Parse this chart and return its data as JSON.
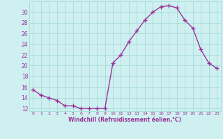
{
  "x": [
    0,
    1,
    2,
    3,
    4,
    5,
    6,
    7,
    8,
    9,
    10,
    11,
    12,
    13,
    14,
    15,
    16,
    17,
    18,
    19,
    20,
    21,
    22,
    23
  ],
  "y": [
    15.5,
    14.5,
    14.0,
    13.5,
    12.5,
    12.5,
    12.0,
    12.0,
    12.0,
    12.0,
    20.5,
    22.0,
    24.5,
    26.5,
    28.5,
    30.0,
    31.0,
    31.2,
    30.8,
    28.5,
    27.0,
    23.0,
    20.5,
    19.5
  ],
  "line_color": "#993399",
  "marker": "+",
  "bg_color": "#cff0f0",
  "grid_color": "#aadddd",
  "xlabel": "Windchill (Refroidissement éolien,°C)",
  "xlabel_color": "#993399",
  "tick_color": "#993399",
  "ylim": [
    11.5,
    32
  ],
  "yticks": [
    12,
    14,
    16,
    18,
    20,
    22,
    24,
    26,
    28,
    30
  ],
  "xticks": [
    0,
    1,
    2,
    3,
    4,
    5,
    6,
    7,
    8,
    9,
    10,
    11,
    12,
    13,
    14,
    15,
    16,
    17,
    18,
    19,
    20,
    21,
    22,
    23
  ],
  "xtick_labels": [
    "0",
    "1",
    "2",
    "3",
    "4",
    "5",
    "6",
    "7",
    "8",
    "9",
    "10",
    "11",
    "12",
    "13",
    "14",
    "15",
    "16",
    "17",
    "18",
    "19",
    "20",
    "21",
    "22",
    "23"
  ]
}
